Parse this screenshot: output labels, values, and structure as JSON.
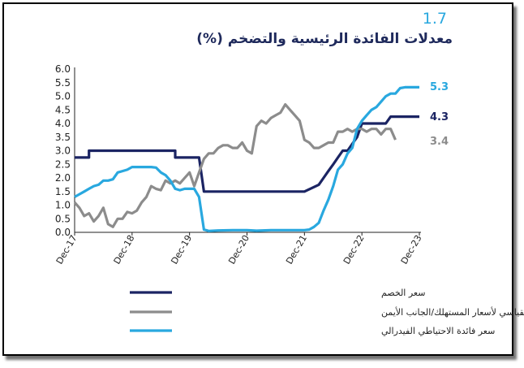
{
  "figure": {
    "number": "1.7",
    "title": "معدلات الفائدة الرئيسية والتضخم (%)"
  },
  "chart_data": {
    "type": "line",
    "ylim": [
      0,
      6
    ],
    "yticks": [
      "0.0",
      "0.5",
      "1.0",
      "1.5",
      "2.0",
      "2.5",
      "3.0",
      "3.5",
      "4.0",
      "4.5",
      "5.0",
      "5.5",
      "6.0"
    ],
    "xlim": [
      2017.917,
      2023.917
    ],
    "xticks": [
      {
        "label": "Dec-17",
        "x": 2017.917
      },
      {
        "label": "Dec-18",
        "x": 2018.917
      },
      {
        "label": "Dec-19",
        "x": 2019.917
      },
      {
        "label": "Dec-20",
        "x": 2020.917
      },
      {
        "label": "Dec-21",
        "x": 2021.917
      },
      {
        "label": "Dec-22",
        "x": 2022.917
      },
      {
        "label": "Dec-23",
        "x": 2023.917
      }
    ],
    "grid": false,
    "legend_position": "bottom",
    "series": [
      {
        "name": "سعر الخصم",
        "color": "#1b2463",
        "end_label": "4.3",
        "points": [
          [
            2017.917,
            2.75
          ],
          [
            2018.167,
            2.75
          ],
          [
            2018.167,
            3.0
          ],
          [
            2019.667,
            3.0
          ],
          [
            2019.667,
            2.75
          ],
          [
            2020.083,
            2.75
          ],
          [
            2020.167,
            1.5
          ],
          [
            2021.917,
            1.5
          ],
          [
            2022.167,
            1.75
          ],
          [
            2022.25,
            2.0
          ],
          [
            2022.333,
            2.25
          ],
          [
            2022.417,
            2.5
          ],
          [
            2022.5,
            2.75
          ],
          [
            2022.583,
            3.0
          ],
          [
            2022.667,
            3.0
          ],
          [
            2022.75,
            3.25
          ],
          [
            2022.833,
            3.5
          ],
          [
            2022.917,
            4.0
          ],
          [
            2023.333,
            4.0
          ],
          [
            2023.417,
            4.25
          ],
          [
            2023.917,
            4.25
          ]
        ]
      },
      {
        "name": "الرقم القياسي لأسعار المستهلك/الجانب الأيمن",
        "color": "#8c8c8c",
        "end_label": "3.4",
        "points": [
          [
            2017.917,
            1.1
          ],
          [
            2018.0,
            0.9
          ],
          [
            2018.083,
            0.6
          ],
          [
            2018.167,
            0.7
          ],
          [
            2018.25,
            0.4
          ],
          [
            2018.333,
            0.6
          ],
          [
            2018.417,
            0.9
          ],
          [
            2018.5,
            0.3
          ],
          [
            2018.583,
            0.2
          ],
          [
            2018.667,
            0.5
          ],
          [
            2018.75,
            0.5
          ],
          [
            2018.833,
            0.75
          ],
          [
            2018.917,
            0.7
          ],
          [
            2019.0,
            0.8
          ],
          [
            2019.083,
            1.1
          ],
          [
            2019.167,
            1.3
          ],
          [
            2019.25,
            1.7
          ],
          [
            2019.333,
            1.6
          ],
          [
            2019.417,
            1.55
          ],
          [
            2019.5,
            1.9
          ],
          [
            2019.583,
            1.8
          ],
          [
            2019.667,
            1.9
          ],
          [
            2019.75,
            1.8
          ],
          [
            2019.833,
            2.0
          ],
          [
            2019.917,
            2.2
          ],
          [
            2020.0,
            1.7
          ],
          [
            2020.083,
            2.2
          ],
          [
            2020.167,
            2.7
          ],
          [
            2020.25,
            2.9
          ],
          [
            2020.333,
            2.9
          ],
          [
            2020.417,
            3.1
          ],
          [
            2020.5,
            3.2
          ],
          [
            2020.583,
            3.2
          ],
          [
            2020.667,
            3.1
          ],
          [
            2020.75,
            3.1
          ],
          [
            2020.833,
            3.3
          ],
          [
            2020.917,
            3.0
          ],
          [
            2021.0,
            2.9
          ],
          [
            2021.083,
            3.9
          ],
          [
            2021.167,
            4.1
          ],
          [
            2021.25,
            4.0
          ],
          [
            2021.333,
            4.2
          ],
          [
            2021.417,
            4.3
          ],
          [
            2021.5,
            4.4
          ],
          [
            2021.583,
            4.7
          ],
          [
            2021.667,
            4.5
          ],
          [
            2021.75,
            4.3
          ],
          [
            2021.833,
            4.1
          ],
          [
            2021.917,
            3.4
          ],
          [
            2022.0,
            3.3
          ],
          [
            2022.083,
            3.1
          ],
          [
            2022.167,
            3.1
          ],
          [
            2022.25,
            3.2
          ],
          [
            2022.333,
            3.3
          ],
          [
            2022.417,
            3.3
          ],
          [
            2022.5,
            3.7
          ],
          [
            2022.583,
            3.7
          ],
          [
            2022.667,
            3.8
          ],
          [
            2022.75,
            3.7
          ],
          [
            2022.833,
            3.8
          ],
          [
            2022.917,
            3.8
          ],
          [
            2023.0,
            3.7
          ],
          [
            2023.083,
            3.8
          ],
          [
            2023.167,
            3.8
          ],
          [
            2023.25,
            3.6
          ],
          [
            2023.333,
            3.8
          ],
          [
            2023.417,
            3.8
          ],
          [
            2023.5,
            3.4
          ]
        ]
      },
      {
        "name": "سعر فائدة الاحتياطي الفيدرالي",
        "color": "#29a8df",
        "end_label": "5.3",
        "points": [
          [
            2017.917,
            1.3
          ],
          [
            2018.0,
            1.4
          ],
          [
            2018.083,
            1.5
          ],
          [
            2018.167,
            1.6
          ],
          [
            2018.25,
            1.7
          ],
          [
            2018.333,
            1.75
          ],
          [
            2018.417,
            1.9
          ],
          [
            2018.5,
            1.9
          ],
          [
            2018.583,
            1.95
          ],
          [
            2018.667,
            2.2
          ],
          [
            2018.75,
            2.25
          ],
          [
            2018.833,
            2.3
          ],
          [
            2018.917,
            2.4
          ],
          [
            2019.0,
            2.4
          ],
          [
            2019.083,
            2.4
          ],
          [
            2019.167,
            2.4
          ],
          [
            2019.25,
            2.4
          ],
          [
            2019.333,
            2.38
          ],
          [
            2019.417,
            2.2
          ],
          [
            2019.5,
            2.1
          ],
          [
            2019.583,
            1.9
          ],
          [
            2019.667,
            1.6
          ],
          [
            2019.75,
            1.55
          ],
          [
            2019.833,
            1.6
          ],
          [
            2019.917,
            1.6
          ],
          [
            2020.0,
            1.6
          ],
          [
            2020.083,
            1.3
          ],
          [
            2020.167,
            0.1
          ],
          [
            2020.25,
            0.05
          ],
          [
            2020.417,
            0.07
          ],
          [
            2020.667,
            0.08
          ],
          [
            2020.917,
            0.08
          ],
          [
            2021.083,
            0.06
          ],
          [
            2021.333,
            0.08
          ],
          [
            2021.583,
            0.08
          ],
          [
            2021.75,
            0.08
          ],
          [
            2021.917,
            0.08
          ],
          [
            2022.0,
            0.1
          ],
          [
            2022.083,
            0.2
          ],
          [
            2022.167,
            0.35
          ],
          [
            2022.25,
            0.8
          ],
          [
            2022.333,
            1.2
          ],
          [
            2022.417,
            1.7
          ],
          [
            2022.5,
            2.3
          ],
          [
            2022.583,
            2.5
          ],
          [
            2022.667,
            2.9
          ],
          [
            2022.75,
            3.1
          ],
          [
            2022.833,
            3.8
          ],
          [
            2022.917,
            4.1
          ],
          [
            2023.0,
            4.3
          ],
          [
            2023.083,
            4.5
          ],
          [
            2023.167,
            4.6
          ],
          [
            2023.25,
            4.8
          ],
          [
            2023.333,
            5.0
          ],
          [
            2023.417,
            5.1
          ],
          [
            2023.5,
            5.1
          ],
          [
            2023.583,
            5.3
          ],
          [
            2023.667,
            5.33
          ],
          [
            2023.917,
            5.33
          ]
        ]
      }
    ]
  }
}
